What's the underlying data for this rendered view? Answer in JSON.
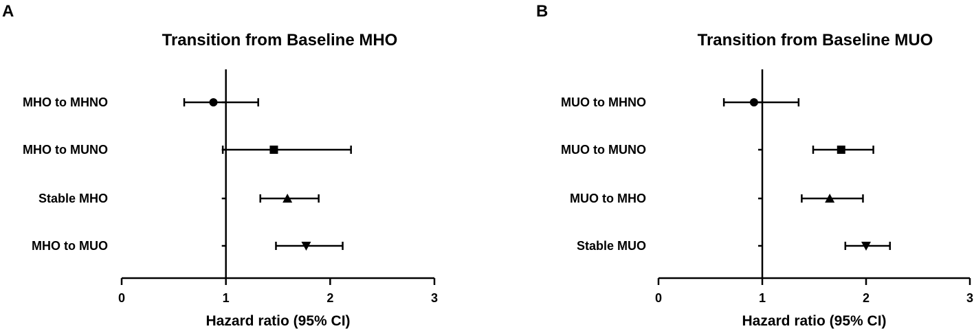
{
  "chart_data": [
    {
      "type": "forest",
      "panel_label": "A",
      "title": "Transition from Baseline MHO",
      "xlabel": "Hazard ratio (95% CI)",
      "xlim": [
        0,
        3
      ],
      "xticks": [
        "0",
        "1",
        "2",
        "3"
      ],
      "reference_line": 1,
      "rows": [
        {
          "label": "MHO to MHNO",
          "hr": 0.88,
          "lo": 0.6,
          "hi": 1.31,
          "marker": "circle"
        },
        {
          "label": "MHO to MUNO",
          "hr": 1.46,
          "lo": 0.97,
          "hi": 2.2,
          "marker": "square"
        },
        {
          "label": "Stable MHO",
          "hr": 1.59,
          "lo": 1.33,
          "hi": 1.89,
          "marker": "triangle-up"
        },
        {
          "label": "MHO to MUO",
          "hr": 1.77,
          "lo": 1.48,
          "hi": 2.12,
          "marker": "triangle-down"
        }
      ]
    },
    {
      "type": "forest",
      "panel_label": "B",
      "title": "Transition from Baseline MUO",
      "xlabel": "Hazard ratio (95% CI)",
      "xlim": [
        0,
        3
      ],
      "xticks": [
        "0",
        "1",
        "2",
        "3"
      ],
      "reference_line": 1,
      "rows": [
        {
          "label": "MUO to MHNO",
          "hr": 0.92,
          "lo": 0.63,
          "hi": 1.35,
          "marker": "circle"
        },
        {
          "label": "MUO to MUNO",
          "hr": 1.76,
          "lo": 1.49,
          "hi": 2.07,
          "marker": "square"
        },
        {
          "label": "MUO to MHO",
          "hr": 1.65,
          "lo": 1.38,
          "hi": 1.97,
          "marker": "triangle-up"
        },
        {
          "label": "Stable MUO",
          "hr": 2.0,
          "lo": 1.8,
          "hi": 2.23,
          "marker": "triangle-down"
        }
      ]
    }
  ]
}
